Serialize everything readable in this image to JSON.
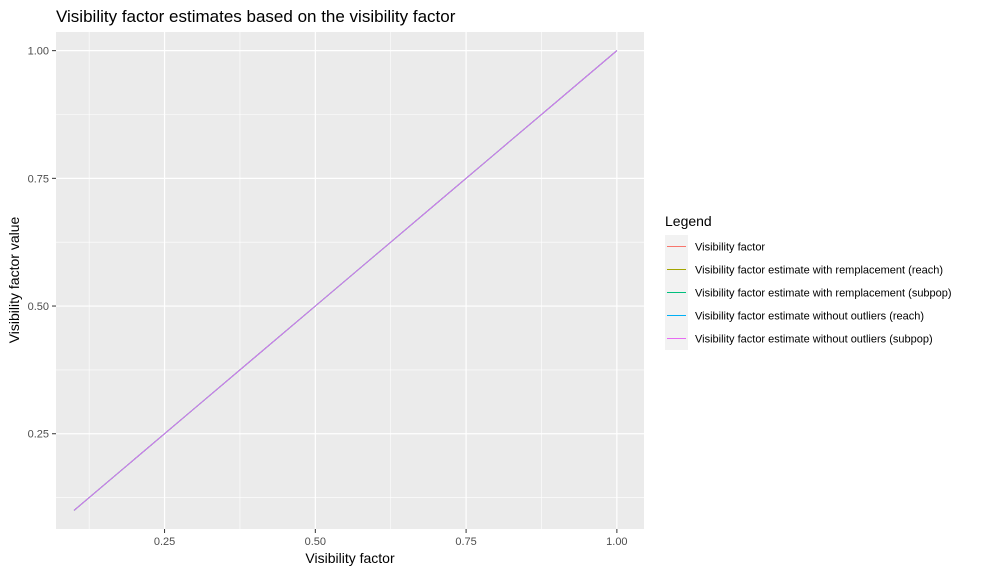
{
  "chart_data": {
    "type": "line",
    "title": "Visibility factor estimates based on the visibility factor",
    "xlabel": "Visibility factor",
    "ylabel": "Visibility factor value",
    "xlim": [
      0.07,
      1.045
    ],
    "ylim": [
      0.0635,
      1.0365
    ],
    "xticks": [
      0.25,
      0.5,
      0.75,
      1.0
    ],
    "xtick_labels": [
      "0.25",
      "0.50",
      "0.75",
      "1.00"
    ],
    "yticks": [
      0.25,
      0.5,
      0.75,
      1.0
    ],
    "ytick_labels": [
      "0.25",
      "0.50",
      "0.75",
      "1.00"
    ],
    "grid": true,
    "panel_background": "#ebebeb",
    "legend": {
      "title": "Legend",
      "position": "right"
    },
    "x": [
      0.1,
      0.2,
      0.3,
      0.4,
      0.5,
      0.6,
      0.7,
      0.8,
      0.9,
      1.0
    ],
    "series": [
      {
        "name": "Visibility factor",
        "color": "#F8766D",
        "values": [
          0.1,
          0.2,
          0.3,
          0.4,
          0.5,
          0.6,
          0.7,
          0.8,
          0.9,
          1.0
        ]
      },
      {
        "name": "Visibility factor estimate with remplacement (reach)",
        "color": "#A3A500",
        "values": [
          0.1,
          0.2,
          0.3,
          0.4,
          0.5,
          0.6,
          0.7,
          0.8,
          0.9,
          1.0
        ]
      },
      {
        "name": "Visibility factor estimate with remplacement (subpop)",
        "color": "#00BF7D",
        "values": [
          0.1,
          0.2,
          0.3,
          0.4,
          0.5,
          0.6,
          0.7,
          0.8,
          0.9,
          1.0
        ]
      },
      {
        "name": "Visibility factor estimate without outliers (reach)",
        "color": "#00B0F6",
        "values": [
          0.1,
          0.2,
          0.3,
          0.4,
          0.5,
          0.6,
          0.7,
          0.8,
          0.9,
          1.0
        ]
      },
      {
        "name": "Visibility factor estimate without outliers (subpop)",
        "color": "#E76BF3",
        "values": [
          0.1,
          0.2,
          0.3,
          0.4,
          0.5,
          0.6,
          0.7,
          0.8,
          0.9,
          1.0
        ]
      }
    ]
  }
}
